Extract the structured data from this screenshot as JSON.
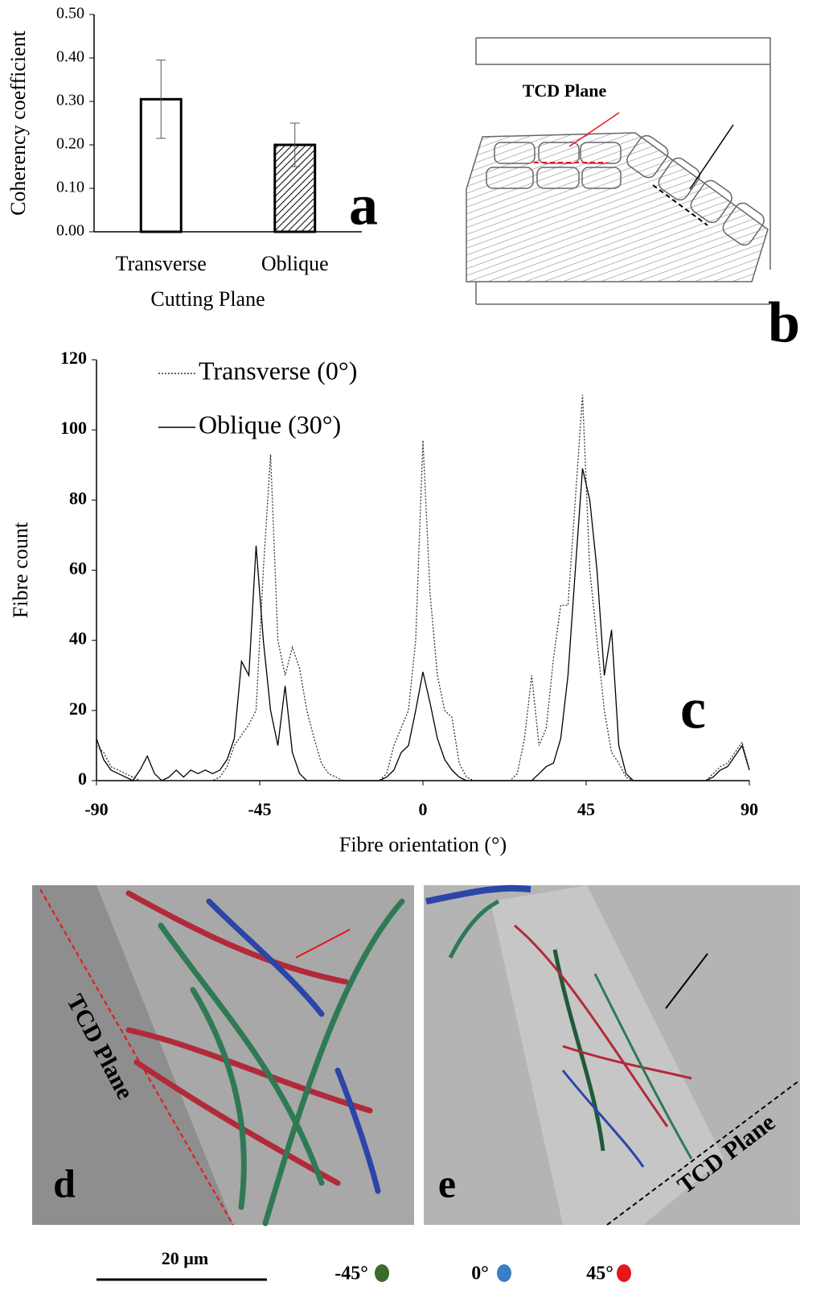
{
  "chart_data": [
    {
      "type": "bar",
      "panel": "a",
      "xlabel": "Cutting Plane",
      "ylabel": "Coherency coefficient",
      "categories": [
        "Transverse",
        "Oblique"
      ],
      "values": [
        0.305,
        0.2
      ],
      "errors": [
        0.09,
        0.05
      ],
      "fills": [
        "plain",
        "hatched"
      ],
      "color": "#000000",
      "ylim": [
        0,
        0.5
      ],
      "yticks": [
        {
          "value": 0,
          "label": "0.00"
        },
        {
          "value": 0.1,
          "label": "0.10"
        },
        {
          "value": 0.2,
          "label": "0.20"
        },
        {
          "value": 0.3,
          "label": "0.30"
        },
        {
          "value": 0.4,
          "label": "0.40"
        },
        {
          "value": 0.5,
          "label": "0.50"
        }
      ]
    },
    {
      "type": "line",
      "panel": "c",
      "xlabel": "Fibre orientation (°)",
      "ylabel": "Fibre count",
      "x": [
        -90,
        -88,
        -86,
        -84,
        -82,
        -80,
        -78,
        -76,
        -74,
        -72,
        -70,
        -68,
        -66,
        -64,
        -62,
        -60,
        -58,
        -56,
        -54,
        -52,
        -50,
        -48,
        -46,
        -44,
        -42,
        -40,
        -38,
        -36,
        -34,
        -32,
        -30,
        -28,
        -26,
        -24,
        -22,
        -20,
        -18,
        -16,
        -14,
        -12,
        -10,
        -8,
        -6,
        -4,
        -2,
        0,
        2,
        4,
        6,
        8,
        10,
        12,
        14,
        16,
        18,
        20,
        22,
        24,
        26,
        28,
        30,
        32,
        34,
        36,
        38,
        40,
        42,
        44,
        46,
        48,
        50,
        52,
        54,
        56,
        58,
        60,
        62,
        64,
        66,
        68,
        70,
        72,
        74,
        76,
        78,
        80,
        82,
        84,
        86,
        88,
        90
      ],
      "series": [
        {
          "name": "Transverse  (0°)",
          "color": "#333333",
          "dash": "dotted",
          "values": [
            10,
            8,
            4,
            3,
            2,
            1,
            0,
            0,
            0,
            0,
            0,
            0,
            0,
            0,
            0,
            0,
            0,
            1,
            4,
            10,
            13,
            16,
            20,
            60,
            93,
            40,
            30,
            38,
            32,
            20,
            12,
            5,
            2,
            1,
            0,
            0,
            0,
            0,
            0,
            0,
            2,
            10,
            15,
            20,
            40,
            97,
            53,
            30,
            20,
            18,
            5,
            1,
            0,
            0,
            0,
            0,
            0,
            0,
            2,
            12,
            30,
            10,
            15,
            35,
            50,
            50,
            80,
            110,
            60,
            40,
            20,
            8,
            5,
            1,
            0,
            0,
            0,
            0,
            0,
            0,
            0,
            0,
            0,
            0,
            0,
            2,
            4,
            5,
            8,
            11,
            3
          ]
        },
        {
          "name": "Oblique (30°)",
          "color": "#000000",
          "dash": "solid",
          "values": [
            12,
            6,
            3,
            2,
            1,
            0,
            3,
            7,
            2,
            0,
            1,
            3,
            1,
            3,
            2,
            3,
            2,
            3,
            6,
            12,
            34,
            30,
            67,
            40,
            20,
            10,
            27,
            8,
            2,
            0,
            0,
            0,
            0,
            0,
            0,
            0,
            0,
            0,
            0,
            0,
            1,
            3,
            8,
            10,
            20,
            31,
            22,
            12,
            6,
            3,
            1,
            0,
            0,
            0,
            0,
            0,
            0,
            0,
            0,
            0,
            0,
            2,
            4,
            5,
            12,
            30,
            60,
            89,
            80,
            60,
            30,
            43,
            10,
            2,
            0,
            0,
            0,
            0,
            0,
            0,
            0,
            0,
            0,
            0,
            0,
            1,
            3,
            4,
            7,
            10,
            3
          ]
        }
      ],
      "xlim": [
        -90,
        90
      ],
      "xticks": [
        -90,
        -45,
        0,
        45,
        90
      ],
      "ylim": [
        0,
        120
      ],
      "yticks": [
        0,
        20,
        40,
        60,
        80,
        100,
        120
      ],
      "legend": "upper left"
    }
  ],
  "diagram": {
    "panel": "b",
    "label": "TCD Plane"
  },
  "images": [
    {
      "panel": "d",
      "label": "TCD Plane"
    },
    {
      "panel": "e",
      "label": "TCD Plane"
    }
  ],
  "scale_bar": "20 µm",
  "key": [
    {
      "label": "-45°",
      "color": "#3b6b2a"
    },
    {
      "label": "0°",
      "color": "#3a7fc4"
    },
    {
      "label": "45°",
      "color": "#e8141b"
    }
  ]
}
